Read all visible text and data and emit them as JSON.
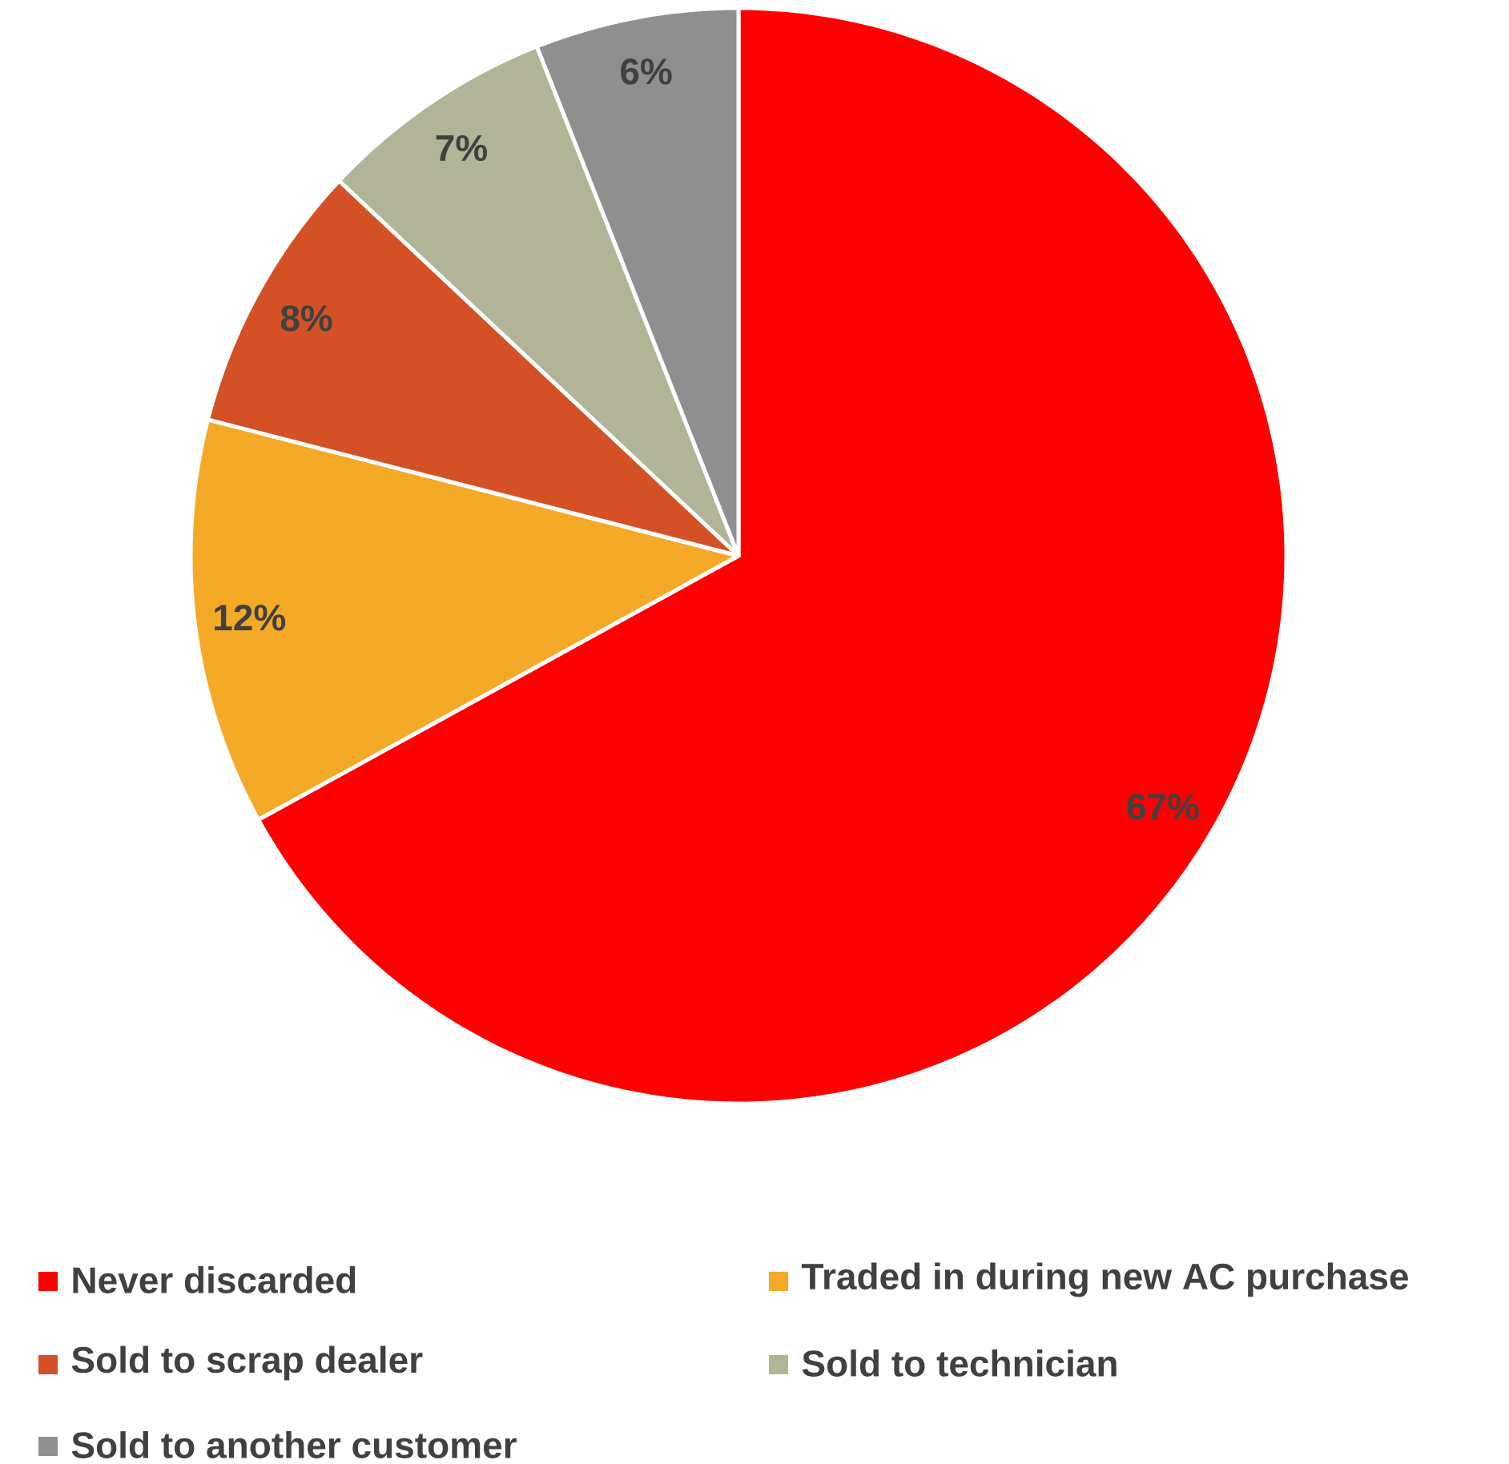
{
  "chart_data": {
    "type": "pie",
    "categories": [
      "Never discarded",
      "Traded in during new AC purchase",
      "Sold to scrap dealer",
      "Sold to technician",
      "Sold to another customer"
    ],
    "values": [
      67,
      12,
      8,
      7,
      6
    ],
    "value_labels": [
      "67%",
      "12%",
      "8%",
      "7%",
      "6%"
    ],
    "colors": [
      "#ff0000",
      "#f4aa26",
      "#d45126",
      "#b2b498",
      "#8f8f8f"
    ],
    "legend": "bottom"
  }
}
